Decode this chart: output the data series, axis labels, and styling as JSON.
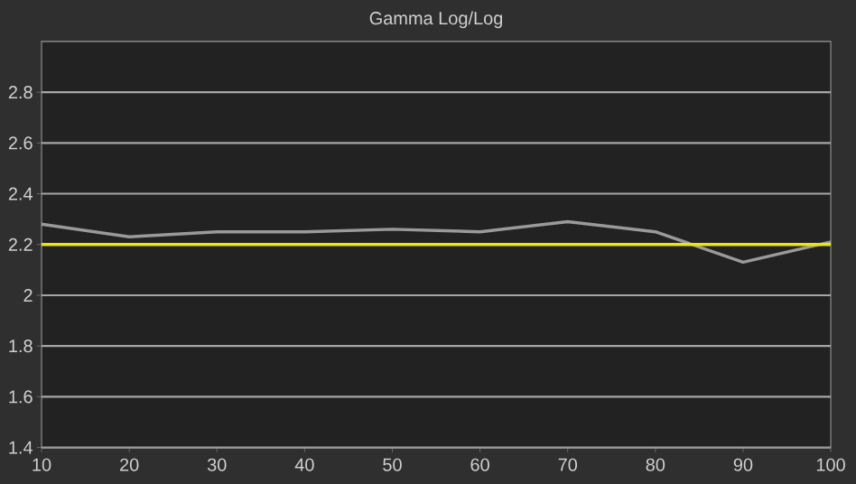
{
  "chart_data": {
    "type": "line",
    "title": "Gamma Log/Log",
    "x": [
      10,
      20,
      30,
      40,
      50,
      60,
      70,
      80,
      90,
      100
    ],
    "series": [
      {
        "color": "#9a9a9a",
        "values": [
          2.28,
          2.23,
          2.25,
          2.25,
          2.26,
          2.25,
          2.29,
          2.25,
          2.13,
          2.21
        ]
      },
      {
        "color": "#e6e619",
        "values": [
          2.2,
          2.2,
          2.2,
          2.2,
          2.2,
          2.2,
          2.2,
          2.2,
          2.2,
          2.2
        ]
      }
    ],
    "xlim": [
      10,
      100
    ],
    "ylim": [
      1.4,
      3.0
    ],
    "xticks": [
      10,
      20,
      30,
      40,
      50,
      60,
      70,
      80,
      90,
      100
    ],
    "yticks": [
      1.4,
      1.6,
      1.8,
      2,
      2.2,
      2.4,
      2.6,
      2.8
    ],
    "grid": "y",
    "marker": "none",
    "line_style": "solid"
  }
}
